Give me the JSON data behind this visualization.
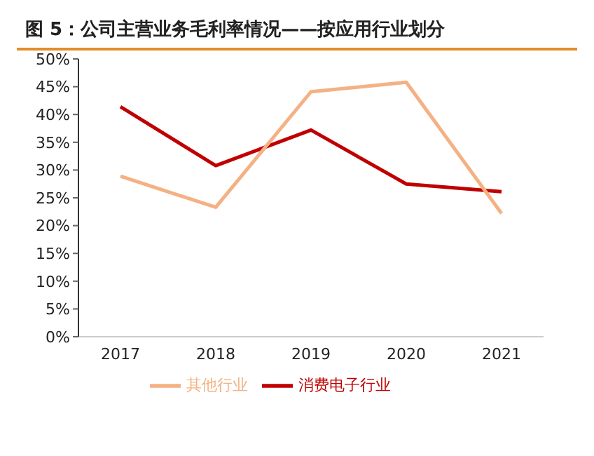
{
  "chart_data": {
    "type": "line",
    "title": "图 5：公司主营业务毛利率情况——按应用行业划分",
    "categories": [
      "2017",
      "2018",
      "2019",
      "2020",
      "2021"
    ],
    "series": [
      {
        "name": "消费电子行业",
        "color": "#c00000",
        "values": [
          41.4,
          30.8,
          37.2,
          27.5,
          26.1
        ]
      },
      {
        "name": "其他行业",
        "color": "#f4b183",
        "values": [
          28.9,
          23.3,
          44.1,
          45.8,
          22.2
        ]
      }
    ],
    "ylim": [
      0,
      50
    ],
    "yticks": [
      {
        "value": 0,
        "label": "0%"
      },
      {
        "value": 5,
        "label": "5%"
      },
      {
        "value": 10,
        "label": "10%"
      },
      {
        "value": 15,
        "label": "15%"
      },
      {
        "value": 20,
        "label": "20%"
      },
      {
        "value": 25,
        "label": "25%"
      },
      {
        "value": 30,
        "label": "30%"
      },
      {
        "value": 35,
        "label": "35%"
      },
      {
        "value": 40,
        "label": "40%"
      },
      {
        "value": 45,
        "label": "45%"
      },
      {
        "value": 50,
        "label": "50%"
      }
    ],
    "grid": false,
    "legend": "bottom",
    "marker": "none",
    "line_style": "solid"
  }
}
